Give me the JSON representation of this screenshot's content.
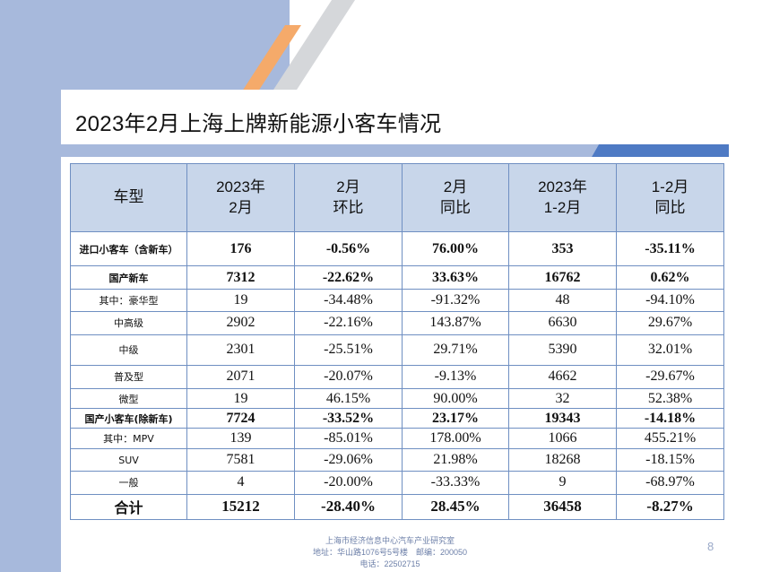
{
  "slide": {
    "title": "2023年2月上海上牌新能源小客车情况",
    "page_number": "8",
    "footer": {
      "line1": "上海市经济信息中心汽车产业研究室",
      "line2": "地址：华山路1076号5号楼　邮编：200050",
      "line3": "电话：22502715"
    },
    "colors": {
      "band": "#a7b9dc",
      "stripe_orange": "#f5aa6a",
      "stripe_grey": "#d5d7da",
      "header_fill": "#c8d6ea",
      "grid": "#6f8fc2"
    }
  },
  "table": {
    "headers": [
      {
        "line1": "车型",
        "line2": ""
      },
      {
        "line1": "2023年",
        "line2": "2月"
      },
      {
        "line1": "2月",
        "line2": "环比"
      },
      {
        "line1": "2月",
        "line2": "同比"
      },
      {
        "line1": "2023年",
        "line2": "1-2月"
      },
      {
        "line1": "1-2月",
        "line2": "同比"
      }
    ],
    "rows": [
      {
        "label": "进口小客车（含新车）",
        "c1": "176",
        "c2": "-0.56%",
        "c3": "76.00%",
        "c4": "353",
        "c5": "-35.11%"
      },
      {
        "label": "国产新车",
        "c1": "7312",
        "c2": "-22.62%",
        "c3": "33.63%",
        "c4": "16762",
        "c5": "0.62%"
      },
      {
        "label": "其中：豪华型",
        "c1": "19",
        "c2": "-34.48%",
        "c3": "-91.32%",
        "c4": "48",
        "c5": "-94.10%"
      },
      {
        "label": "中高级",
        "c1": "2902",
        "c2": "-22.16%",
        "c3": "143.87%",
        "c4": "6630",
        "c5": "29.67%"
      },
      {
        "label": "中级",
        "c1": "2301",
        "c2": "-25.51%",
        "c3": "29.71%",
        "c4": "5390",
        "c5": "32.01%"
      },
      {
        "label": "普及型",
        "c1": "2071",
        "c2": "-20.07%",
        "c3": "-9.13%",
        "c4": "4662",
        "c5": "-29.67%"
      },
      {
        "label": "微型",
        "c1": "19",
        "c2": "46.15%",
        "c3": "90.00%",
        "c4": "32",
        "c5": "52.38%"
      },
      {
        "label": "国产小客车(除新车)",
        "c1": "7724",
        "c2": "-33.52%",
        "c3": "23.17%",
        "c4": "19343",
        "c5": "-14.18%"
      },
      {
        "label": "其中：MPV",
        "c1": "139",
        "c2": "-85.01%",
        "c3": "178.00%",
        "c4": "1066",
        "c5": "455.21%"
      },
      {
        "label": "SUV",
        "c1": "7581",
        "c2": "-29.06%",
        "c3": "21.98%",
        "c4": "18268",
        "c5": "-18.15%"
      },
      {
        "label": "一般",
        "c1": "4",
        "c2": "-20.00%",
        "c3": "-33.33%",
        "c4": "9",
        "c5": "-68.97%"
      },
      {
        "label": "合计",
        "c1": "15212",
        "c2": "-28.40%",
        "c3": "28.45%",
        "c4": "36458",
        "c5": "-8.27%"
      }
    ]
  }
}
